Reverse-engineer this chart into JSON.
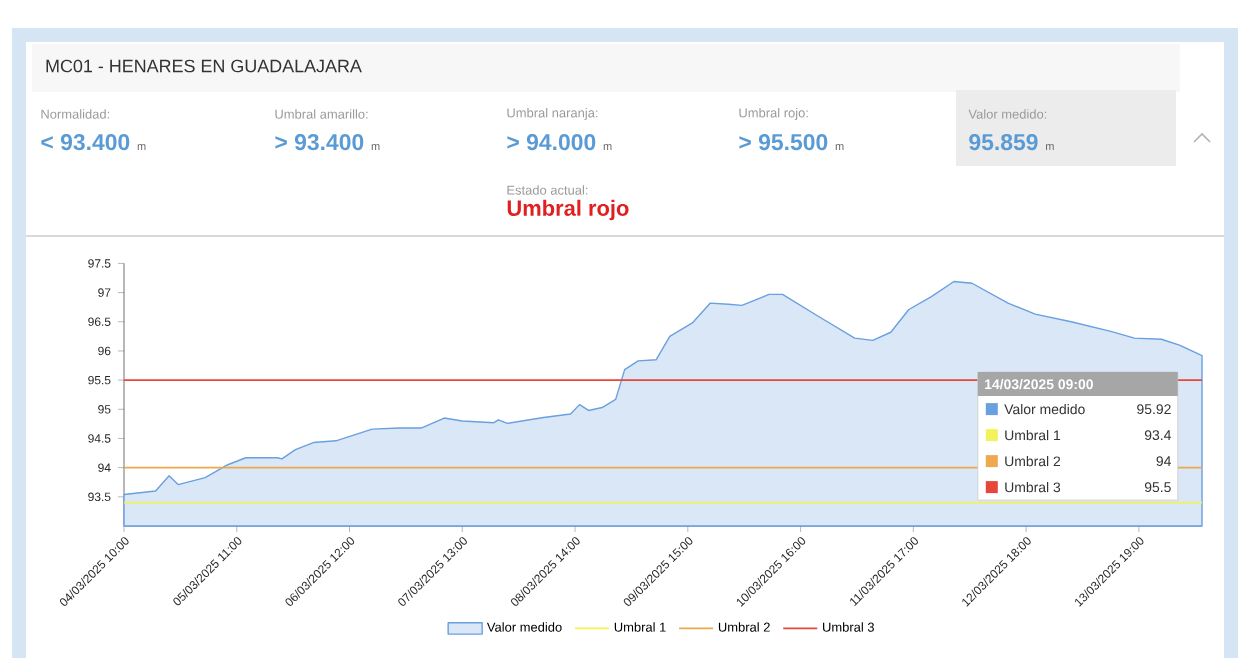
{
  "chart_data": [
    {
      "type": "other",
      "title": "MC01 - HENARES EN GUADALAJARA",
      "annotations": [
        "Normalidad:",
        "< 93.400",
        "m",
        "Umbral amarillo:",
        "> 93.400",
        "m",
        "Umbral naranja:",
        "> 94.000",
        "m",
        "Umbral rojo:",
        "> 95.500",
        "m",
        "Valor medido:",
        "95.859",
        "m",
        "Estado actual:",
        "Umbral rojo"
      ]
    },
    {
      "type": "area",
      "legend": "bottom",
      "xlim": [
        "2025-03-04T10:00",
        "2025-03-14T09:00"
      ],
      "xticks": [
        {
          "value": "2025-03-04T10:00",
          "label": "04/03/2025 10:00"
        },
        {
          "value": "2025-03-05T11:00",
          "label": "05/03/2025 11:00"
        },
        {
          "value": "2025-03-06T12:00",
          "label": "06/03/2025 12:00"
        },
        {
          "value": "2025-03-07T13:00",
          "label": "07/03/2025 13:00"
        },
        {
          "value": "2025-03-08T14:00",
          "label": "08/03/2025 14:00"
        },
        {
          "value": "2025-03-09T15:00",
          "label": "09/03/2025 15:00"
        },
        {
          "value": "2025-03-10T16:00",
          "label": "10/03/2025 16:00"
        },
        {
          "value": "2025-03-11T17:00",
          "label": "11/03/2025 17:00"
        },
        {
          "value": "2025-03-12T18:00",
          "label": "12/03/2025 18:00"
        },
        {
          "value": "2025-03-13T19:00",
          "label": "13/03/2025 19:00"
        }
      ],
      "ylim": [
        93,
        97.5
      ],
      "yticks": [
        93.5,
        94,
        94.5,
        95,
        95.5,
        96,
        96.5,
        97,
        97.5
      ],
      "annotations": [
        "14/03/2025 09:00",
        "95.92",
        "93.4",
        "94",
        "95.5"
      ],
      "series": [
        {
          "name": "Valor medido",
          "type": "area",
          "color": "#6a9fe0",
          "x": [
            "2025-03-04T10:00",
            "2025-03-04T17:00",
            "2025-03-04T20:00",
            "2025-03-04T22:00",
            "2025-03-05T04:00",
            "2025-03-05T09:00",
            "2025-03-05T13:00",
            "2025-03-05T20:00",
            "2025-03-05T21:00",
            "2025-03-06T00:00",
            "2025-03-06T04:00",
            "2025-03-06T09:00",
            "2025-03-06T17:00",
            "2025-03-06T23:00",
            "2025-03-07T04:00",
            "2025-03-07T09:00",
            "2025-03-07T13:00",
            "2025-03-07T20:00",
            "2025-03-07T21:00",
            "2025-03-07T23:00",
            "2025-03-08T07:00",
            "2025-03-08T13:00",
            "2025-03-08T15:00",
            "2025-03-08T17:00",
            "2025-03-08T20:00",
            "2025-03-08T23:00",
            "2025-03-09T01:00",
            "2025-03-09T04:00",
            "2025-03-09T08:00",
            "2025-03-09T11:00",
            "2025-03-09T16:00",
            "2025-03-09T20:00",
            "2025-03-10T00:00",
            "2025-03-10T03:00",
            "2025-03-10T09:00",
            "2025-03-10T12:00",
            "2025-03-10T20:00",
            "2025-03-11T04:00",
            "2025-03-11T08:00",
            "2025-03-11T12:00",
            "2025-03-11T16:00",
            "2025-03-11T21:00",
            "2025-03-12T02:00",
            "2025-03-12T06:00",
            "2025-03-12T14:00",
            "2025-03-12T20:00",
            "2025-03-13T04:00",
            "2025-03-13T13:00",
            "2025-03-13T18:00",
            "2025-03-14T00:00",
            "2025-03-14T04:00",
            "2025-03-14T09:00"
          ],
          "values": [
            93.54,
            93.6,
            93.86,
            93.71,
            93.83,
            94.05,
            94.17,
            94.17,
            94.15,
            94.31,
            94.43,
            94.46,
            94.66,
            94.68,
            94.68,
            94.85,
            94.8,
            94.77,
            94.82,
            94.76,
            94.86,
            94.92,
            95.08,
            94.98,
            95.03,
            95.17,
            95.68,
            95.83,
            95.85,
            96.25,
            96.48,
            96.82,
            96.8,
            96.78,
            96.97,
            96.97,
            96.59,
            96.22,
            96.18,
            96.32,
            96.71,
            96.93,
            97.19,
            97.16,
            96.82,
            96.63,
            96.5,
            96.33,
            96.22,
            96.2,
            96.1,
            95.92
          ]
        },
        {
          "name": "Umbral 1",
          "type": "line",
          "color": "#f2f25a",
          "x": [
            "2025-03-04T10:00",
            "2025-03-14T09:00"
          ],
          "values": [
            93.4,
            93.4
          ]
        },
        {
          "name": "Umbral 2",
          "type": "line",
          "color": "#eea84e",
          "x": [
            "2025-03-04T10:00",
            "2025-03-14T09:00"
          ],
          "values": [
            94,
            94
          ]
        },
        {
          "name": "Umbral 3",
          "type": "line",
          "color": "#e8463a",
          "x": [
            "2025-03-04T10:00",
            "2025-03-14T09:00"
          ],
          "values": [
            95.5,
            95.5
          ]
        }
      ]
    }
  ]
}
